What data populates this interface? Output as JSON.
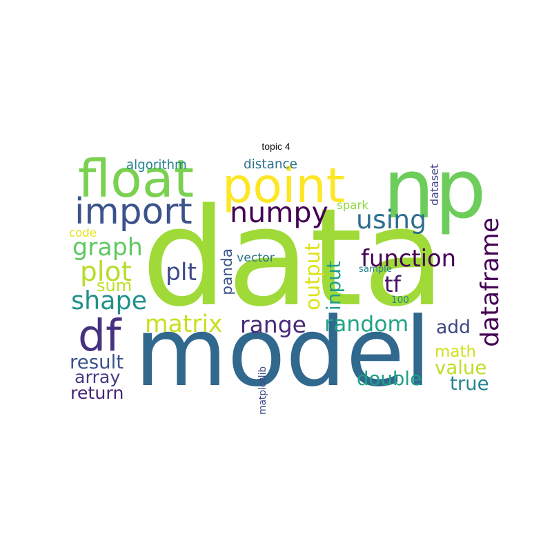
{
  "title": "topic 4",
  "words": [
    {
      "text": "data",
      "color": "#a0da39"
    },
    {
      "text": "model",
      "color": "#31688e"
    },
    {
      "text": "np",
      "color": "#6ccd5a"
    },
    {
      "text": "point",
      "color": "#fde725"
    },
    {
      "text": "float",
      "color": "#7ad151"
    },
    {
      "text": "import",
      "color": "#3b528b"
    },
    {
      "text": "numpy",
      "color": "#440154"
    },
    {
      "text": "df",
      "color": "#46327e"
    },
    {
      "text": "using",
      "color": "#2e6e8e"
    },
    {
      "text": "dataframe",
      "color": "#440154"
    },
    {
      "text": "graph",
      "color": "#5ec962"
    },
    {
      "text": "plot",
      "color": "#b5de2b"
    },
    {
      "text": "shape",
      "color": "#21918c"
    },
    {
      "text": "plt",
      "color": "#3e4a89"
    },
    {
      "text": "panda",
      "color": "#3b528b"
    },
    {
      "text": "output",
      "color": "#dde318"
    },
    {
      "text": "input",
      "color": "#1f9e89"
    },
    {
      "text": "function",
      "color": "#440154"
    },
    {
      "text": "tf",
      "color": "#471063"
    },
    {
      "text": "matrix",
      "color": "#c8e020"
    },
    {
      "text": "range",
      "color": "#482878"
    },
    {
      "text": "random",
      "color": "#20a486"
    },
    {
      "text": "sum",
      "color": "#bddf26"
    },
    {
      "text": "add",
      "color": "#3f4788"
    },
    {
      "text": "math",
      "color": "#d0e11c"
    },
    {
      "text": "value",
      "color": "#bddf26"
    },
    {
      "text": "double",
      "color": "#1fa088"
    },
    {
      "text": "true",
      "color": "#25858e"
    },
    {
      "text": "result",
      "color": "#3b528b"
    },
    {
      "text": "array",
      "color": "#443a83"
    },
    {
      "text": "return",
      "color": "#482475"
    },
    {
      "text": "algorithm",
      "color": "#26828e"
    },
    {
      "text": "distance",
      "color": "#2c728e"
    },
    {
      "text": "dataset",
      "color": "#414487"
    },
    {
      "text": "spark",
      "color": "#8fd744"
    },
    {
      "text": "code",
      "color": "#e5e419"
    },
    {
      "text": "vector",
      "color": "#2c728e"
    },
    {
      "text": "sample",
      "color": "#26828e"
    },
    {
      "text": "100",
      "color": "#23888e"
    },
    {
      "text": "matplotlib",
      "color": "#3e4989"
    }
  ]
}
